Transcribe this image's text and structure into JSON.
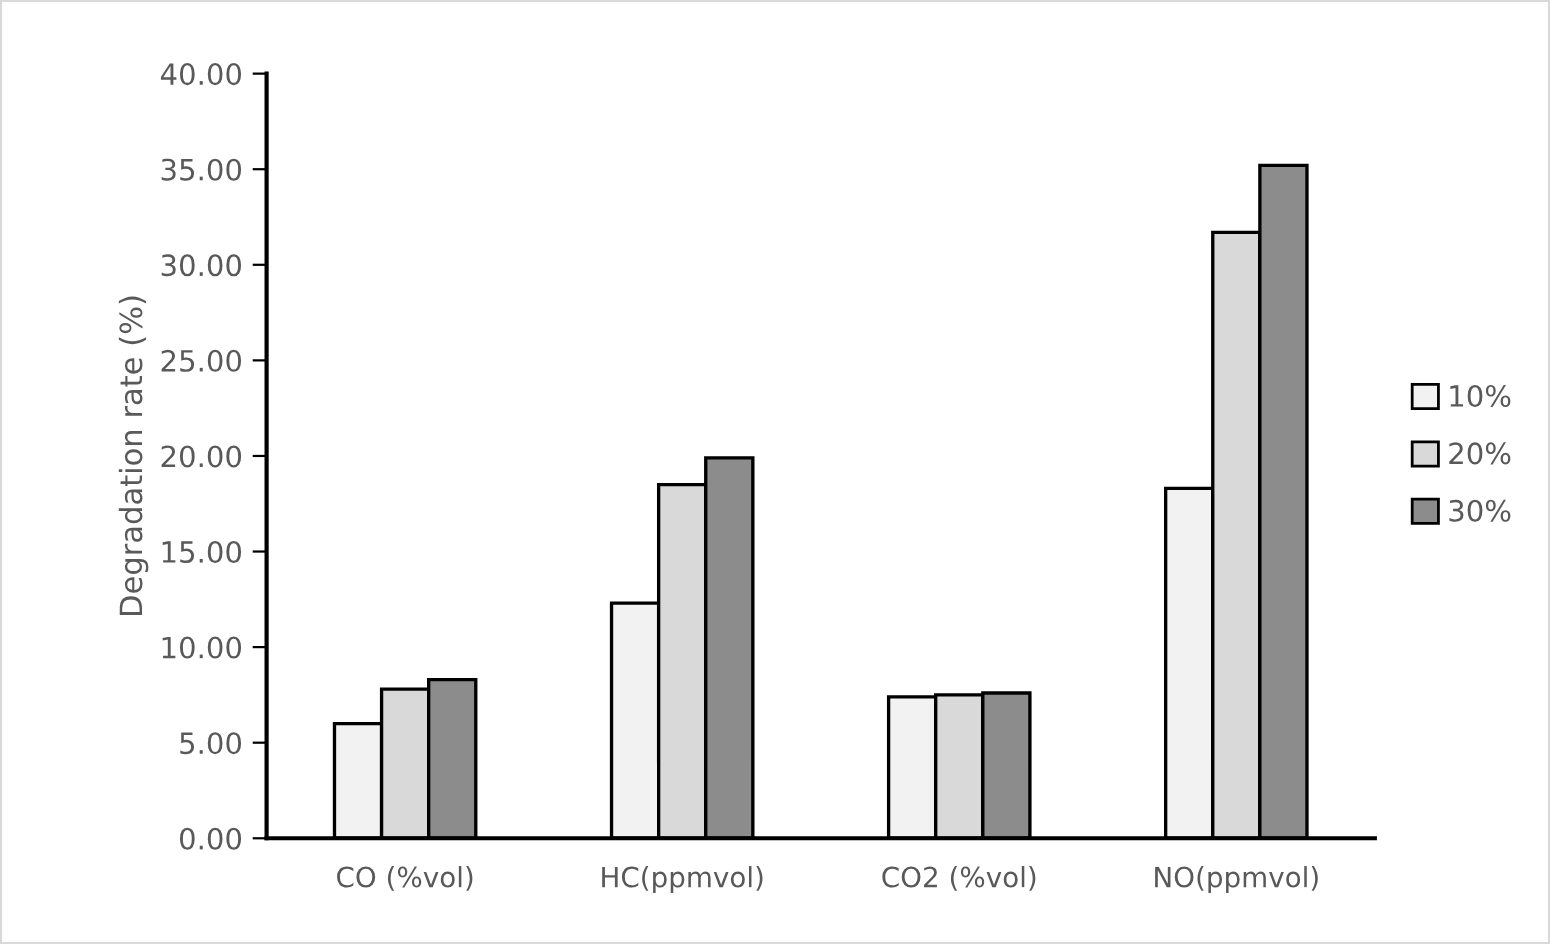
{
  "chart_data": {
    "type": "bar",
    "ylabel": "Degradation rate (%)",
    "categories": [
      "CO (%vol)",
      "HC(ppmvol)",
      "CO2 (%vol)",
      "NO(ppmvol)"
    ],
    "series": [
      {
        "name": "10%",
        "color": "#f2f2f2",
        "values": [
          6.0,
          12.3,
          7.4,
          18.3
        ]
      },
      {
        "name": "20%",
        "color": "#d9d9d9",
        "values": [
          7.8,
          18.5,
          7.5,
          31.7
        ]
      },
      {
        "name": "30%",
        "color": "#8c8c8c",
        "values": [
          8.3,
          19.9,
          7.6,
          35.2
        ]
      }
    ],
    "ylim": [
      0,
      40
    ],
    "yticks": [
      {
        "value": 0,
        "label": "0.00"
      },
      {
        "value": 5,
        "label": "5.00"
      },
      {
        "value": 10,
        "label": "10.00"
      },
      {
        "value": 15,
        "label": "15.00"
      },
      {
        "value": 20,
        "label": "20.00"
      },
      {
        "value": 25,
        "label": "25.00"
      },
      {
        "value": 30,
        "label": "30.00"
      },
      {
        "value": 35,
        "label": "35.00"
      },
      {
        "value": 40,
        "label": "40.00"
      }
    ],
    "grid": false,
    "legend": "right"
  }
}
